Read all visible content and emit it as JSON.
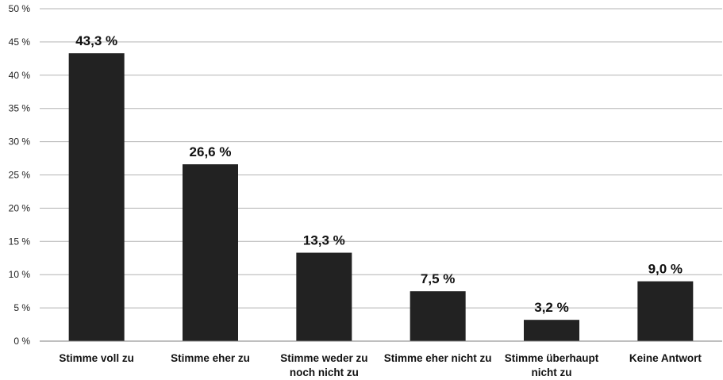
{
  "chart_data": {
    "type": "bar",
    "title": "",
    "xlabel": "",
    "ylabel": "",
    "categories": [
      [
        "Stimme voll zu"
      ],
      [
        "Stimme eher zu"
      ],
      [
        "Stimme weder zu",
        "noch nicht zu"
      ],
      [
        "Stimme eher nicht zu"
      ],
      [
        "Stimme überhaupt",
        "nicht zu"
      ],
      [
        "Keine Antwort"
      ]
    ],
    "values": [
      43.3,
      26.6,
      13.3,
      7.5,
      3.2,
      9.0
    ],
    "value_labels": [
      "43,3 %",
      "26,6 %",
      "13,3 %",
      "7,5 %",
      "3,2 %",
      "9,0 %"
    ],
    "ylim": [
      0,
      50
    ],
    "yticks": [
      0,
      5,
      10,
      15,
      20,
      25,
      30,
      35,
      40,
      45,
      50
    ],
    "ytick_labels": [
      "0 %",
      "5 %",
      "10 %",
      "15 %",
      "20 %",
      "25 %",
      "30 %",
      "35 %",
      "40 %",
      "45 %",
      "50 %"
    ],
    "grid": true,
    "legend": "none",
    "colors": {
      "bar": "#222222",
      "grid": "#b3b3b3",
      "axis": "#7f7f7f"
    }
  }
}
